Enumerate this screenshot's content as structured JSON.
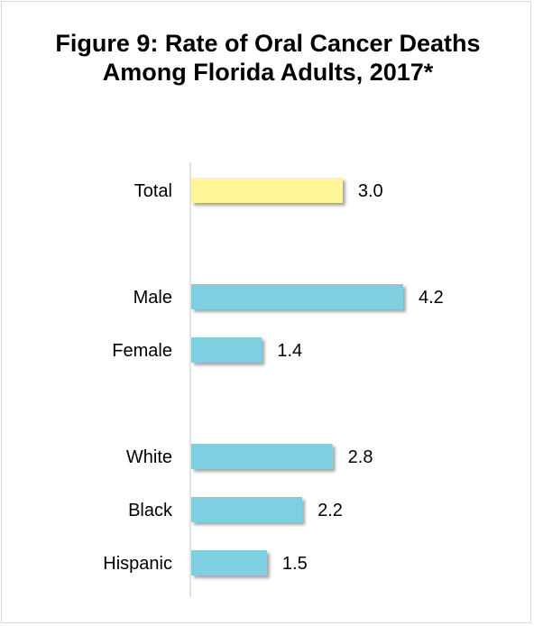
{
  "chart_data": {
    "type": "bar",
    "orientation": "horizontal",
    "title": "Figure 9: Rate of Oral Cancer Deaths Among Florida Adults, 2017*",
    "categories": [
      "Total",
      "Male",
      "Female",
      "White",
      "Black",
      "Hispanic"
    ],
    "values": [
      3.0,
      4.2,
      1.4,
      2.8,
      2.2,
      1.5
    ],
    "value_labels": [
      "3.0",
      "4.2",
      "1.4",
      "2.8",
      "2.2",
      "1.5"
    ],
    "groups": [
      [
        "Total"
      ],
      [
        "Male",
        "Female"
      ],
      [
        "White",
        "Black",
        "Hispanic"
      ]
    ],
    "bar_colors": [
      "#fff69a",
      "#7ecfe2",
      "#7ecfe2",
      "#7ecfe2",
      "#7ecfe2",
      "#7ecfe2"
    ],
    "xlim": [
      0,
      4.2
    ],
    "grid": false,
    "legend": "none",
    "xlabel": "",
    "ylabel": ""
  }
}
